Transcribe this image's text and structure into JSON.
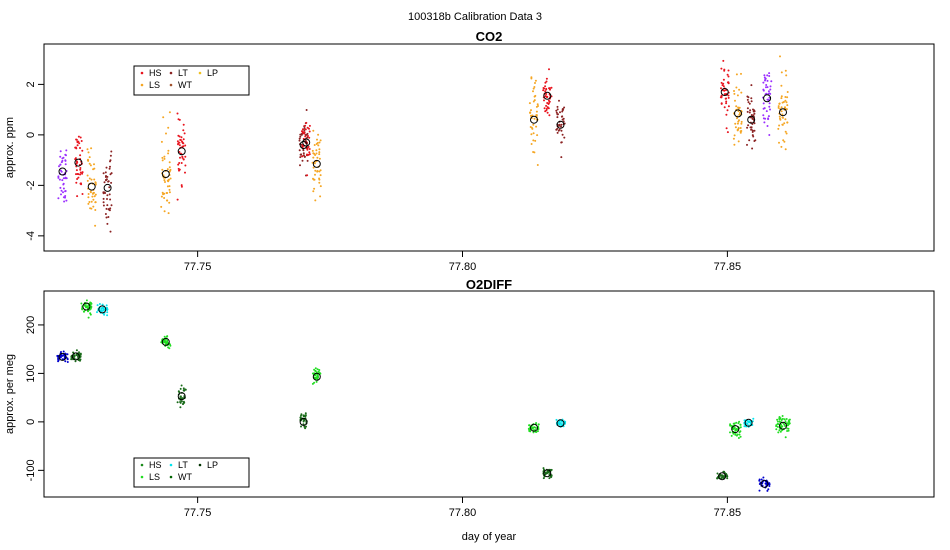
{
  "figure_title": "100318b   Calibration Data 3",
  "chart_data": [
    {
      "type": "scatter",
      "title": "CO2",
      "xlabel": "",
      "ylabel": "approx. ppm",
      "xlim": [
        77.721,
        77.889
      ],
      "ylim": [
        -4.6,
        3.6
      ],
      "x_ticks": [
        77.75,
        77.8,
        77.85
      ],
      "x_tick_labels": [
        "77.75",
        "77.80",
        "77.85"
      ],
      "y_ticks": [
        -4,
        -2,
        0,
        2
      ],
      "y_tick_labels": [
        "-4",
        "-2",
        "0",
        "2"
      ],
      "legend_position": "top-left",
      "legend": [
        {
          "label": "HS",
          "color": "#e8141e"
        },
        {
          "label": "LS",
          "color": "#f5a623"
        },
        {
          "label": "LT",
          "color": "#8b2323"
        },
        {
          "label": "WT",
          "color": "#a0522d"
        },
        {
          "label": "LP",
          "color": "#f0c020"
        }
      ],
      "series": [
        {
          "name": "WT",
          "color": "#9b30ff",
          "x": 77.7245,
          "mean": -1.45,
          "spread": 0.65,
          "x_jitter": 0.0008,
          "n": 45
        },
        {
          "name": "HS",
          "color": "#e8141e",
          "x": 77.7275,
          "mean": -1.1,
          "spread": 0.55,
          "x_jitter": 0.0008,
          "n": 45
        },
        {
          "name": "LS",
          "color": "#f5a623",
          "x": 77.73,
          "mean": -2.05,
          "spread": 0.7,
          "x_jitter": 0.0008,
          "n": 45
        },
        {
          "name": "LT",
          "color": "#8b2323",
          "x": 77.733,
          "mean": -2.1,
          "spread": 0.75,
          "x_jitter": 0.0008,
          "n": 45
        },
        {
          "name": "LS",
          "color": "#f5a623",
          "x": 77.744,
          "mean": -1.55,
          "spread": 0.85,
          "x_jitter": 0.0009,
          "n": 50
        },
        {
          "name": "HS",
          "color": "#e8141e",
          "x": 77.747,
          "mean": -0.65,
          "spread": 0.55,
          "x_jitter": 0.0008,
          "n": 45
        },
        {
          "name": "LT",
          "color": "#8b2323",
          "x": 77.77,
          "mean": -0.4,
          "spread": 0.5,
          "x_jitter": 0.0008,
          "n": 45
        },
        {
          "name": "HS",
          "color": "#e8141e",
          "x": 77.7705,
          "mean": -0.3,
          "spread": 0.45,
          "x_jitter": 0.0008,
          "n": 35
        },
        {
          "name": "LS",
          "color": "#f5a623",
          "x": 77.7725,
          "mean": -1.15,
          "spread": 0.6,
          "x_jitter": 0.0008,
          "n": 45
        },
        {
          "name": "LS",
          "color": "#f5a623",
          "x": 77.8135,
          "mean": 0.6,
          "spread": 0.7,
          "x_jitter": 0.0008,
          "n": 45
        },
        {
          "name": "HS",
          "color": "#e8141e",
          "x": 77.816,
          "mean": 1.55,
          "spread": 0.55,
          "x_jitter": 0.0008,
          "n": 45
        },
        {
          "name": "LT",
          "color": "#8b2323",
          "x": 77.8185,
          "mean": 0.4,
          "spread": 0.45,
          "x_jitter": 0.0008,
          "n": 40
        },
        {
          "name": "HS",
          "color": "#e8141e",
          "x": 77.8495,
          "mean": 1.7,
          "spread": 0.6,
          "x_jitter": 0.0008,
          "n": 45
        },
        {
          "name": "LS",
          "color": "#f5a623",
          "x": 77.852,
          "mean": 0.85,
          "spread": 0.65,
          "x_jitter": 0.0008,
          "n": 45
        },
        {
          "name": "LT",
          "color": "#8b2323",
          "x": 77.8545,
          "mean": 0.6,
          "spread": 0.55,
          "x_jitter": 0.0008,
          "n": 45
        },
        {
          "name": "WT",
          "color": "#9b30ff",
          "x": 77.8575,
          "mean": 1.45,
          "spread": 0.6,
          "x_jitter": 0.0008,
          "n": 45
        },
        {
          "name": "LP",
          "color": "#f5a623",
          "x": 77.8605,
          "mean": 0.9,
          "spread": 0.7,
          "x_jitter": 0.0009,
          "n": 50
        }
      ]
    },
    {
      "type": "scatter",
      "title": "O2DIFF",
      "xlabel": "day of year",
      "ylabel": "approx. per meg",
      "xlim": [
        77.721,
        77.889
      ],
      "ylim": [
        -155,
        270
      ],
      "x_ticks": [
        77.75,
        77.8,
        77.85
      ],
      "x_tick_labels": [
        "77.75",
        "77.80",
        "77.85"
      ],
      "y_ticks": [
        -100,
        0,
        100,
        200
      ],
      "y_tick_labels": [
        "-100",
        "0",
        "100",
        "200"
      ],
      "legend_position": "bottom-left",
      "legend": [
        {
          "label": "HS",
          "color": "#1a8a1a"
        },
        {
          "label": "LS",
          "color": "#22dd22"
        },
        {
          "label": "LT",
          "color": "#00e5ee"
        },
        {
          "label": "WT",
          "color": "#006400"
        },
        {
          "label": "LP",
          "color": "#003300"
        }
      ],
      "series": [
        {
          "name": "WT",
          "color": "#0000cd",
          "x": 77.7245,
          "mean": 134,
          "spread": 5,
          "x_jitter": 0.001,
          "n": 40
        },
        {
          "name": "HS",
          "color": "#1a6b1a",
          "x": 77.727,
          "mean": 135,
          "spread": 5,
          "x_jitter": 0.001,
          "n": 40
        },
        {
          "name": "LS",
          "color": "#22dd22",
          "x": 77.729,
          "mean": 238,
          "spread": 8,
          "x_jitter": 0.001,
          "n": 45
        },
        {
          "name": "LT",
          "color": "#00e5ee",
          "x": 77.732,
          "mean": 232,
          "spread": 6,
          "x_jitter": 0.001,
          "n": 40
        },
        {
          "name": "LS",
          "color": "#22dd22",
          "x": 77.744,
          "mean": 165,
          "spread": 5,
          "x_jitter": 0.0009,
          "n": 40
        },
        {
          "name": "HS",
          "color": "#1a6b1a",
          "x": 77.747,
          "mean": 53,
          "spread": 12,
          "x_jitter": 0.0008,
          "n": 35
        },
        {
          "name": "HS",
          "color": "#1a6b1a",
          "x": 77.77,
          "mean": 0,
          "spread": 10,
          "x_jitter": 0.0006,
          "n": 30
        },
        {
          "name": "LS",
          "color": "#22dd22",
          "x": 77.7725,
          "mean": 93,
          "spread": 8,
          "x_jitter": 0.0008,
          "n": 40
        },
        {
          "name": "LS",
          "color": "#22dd22",
          "x": 77.8135,
          "mean": -12,
          "spread": 6,
          "x_jitter": 0.001,
          "n": 40
        },
        {
          "name": "HS",
          "color": "#1a6b1a",
          "x": 77.816,
          "mean": -106,
          "spread": 5,
          "x_jitter": 0.0009,
          "n": 35
        },
        {
          "name": "LT",
          "color": "#00e5ee",
          "x": 77.8185,
          "mean": -3,
          "spread": 4,
          "x_jitter": 0.0009,
          "n": 35
        },
        {
          "name": "HS",
          "color": "#1a6b1a",
          "x": 77.849,
          "mean": -112,
          "spread": 4,
          "x_jitter": 0.001,
          "n": 35
        },
        {
          "name": "LS",
          "color": "#22dd22",
          "x": 77.8515,
          "mean": -15,
          "spread": 7,
          "x_jitter": 0.0011,
          "n": 45
        },
        {
          "name": "LT",
          "color": "#00e5ee",
          "x": 77.854,
          "mean": -2,
          "spread": 4,
          "x_jitter": 0.0009,
          "n": 35
        },
        {
          "name": "WT",
          "color": "#0000cd",
          "x": 77.857,
          "mean": -128,
          "spread": 6,
          "x_jitter": 0.001,
          "n": 35
        },
        {
          "name": "LP",
          "color": "#22dd22",
          "x": 77.8605,
          "mean": -8,
          "spread": 9,
          "x_jitter": 0.0013,
          "n": 55
        }
      ]
    }
  ]
}
